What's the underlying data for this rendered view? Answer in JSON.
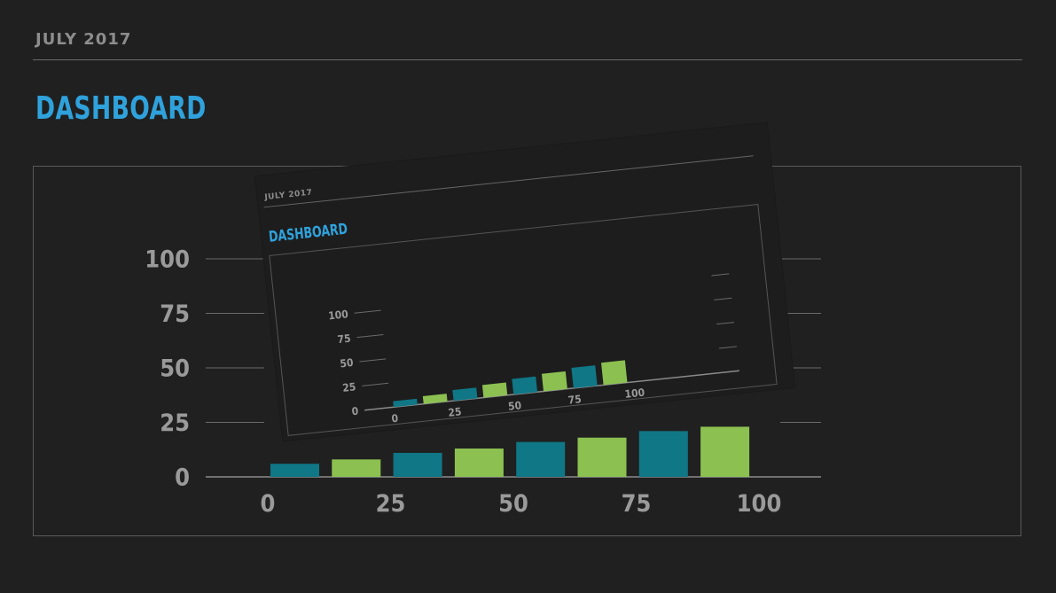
{
  "header": {
    "date": "JULY 2017",
    "title": "DASHBOARD"
  },
  "colors": {
    "background": "#202020",
    "title": "#2fa2dc",
    "teal": "#0f7786",
    "green": "#8cc152",
    "axis_text": "#9a9a9a",
    "rule": "#6a6a6a"
  },
  "chart_data": {
    "type": "bar",
    "categories": [
      "0",
      "25",
      "50",
      "75",
      "100"
    ],
    "x_tick_labels": [
      "0",
      "25",
      "50",
      "75",
      "100"
    ],
    "y_tick_labels": [
      "0",
      "25",
      "50",
      "75",
      "100"
    ],
    "ylim": [
      0,
      100
    ],
    "bars": [
      {
        "value": 6,
        "color": "teal"
      },
      {
        "value": 8,
        "color": "green"
      },
      {
        "value": 11,
        "color": "teal"
      },
      {
        "value": 13,
        "color": "green"
      },
      {
        "value": 16,
        "color": "teal"
      },
      {
        "value": 18,
        "color": "green"
      },
      {
        "value": 21,
        "color": "teal"
      },
      {
        "value": 23,
        "color": "green"
      }
    ],
    "grid": true,
    "legend": "none"
  }
}
